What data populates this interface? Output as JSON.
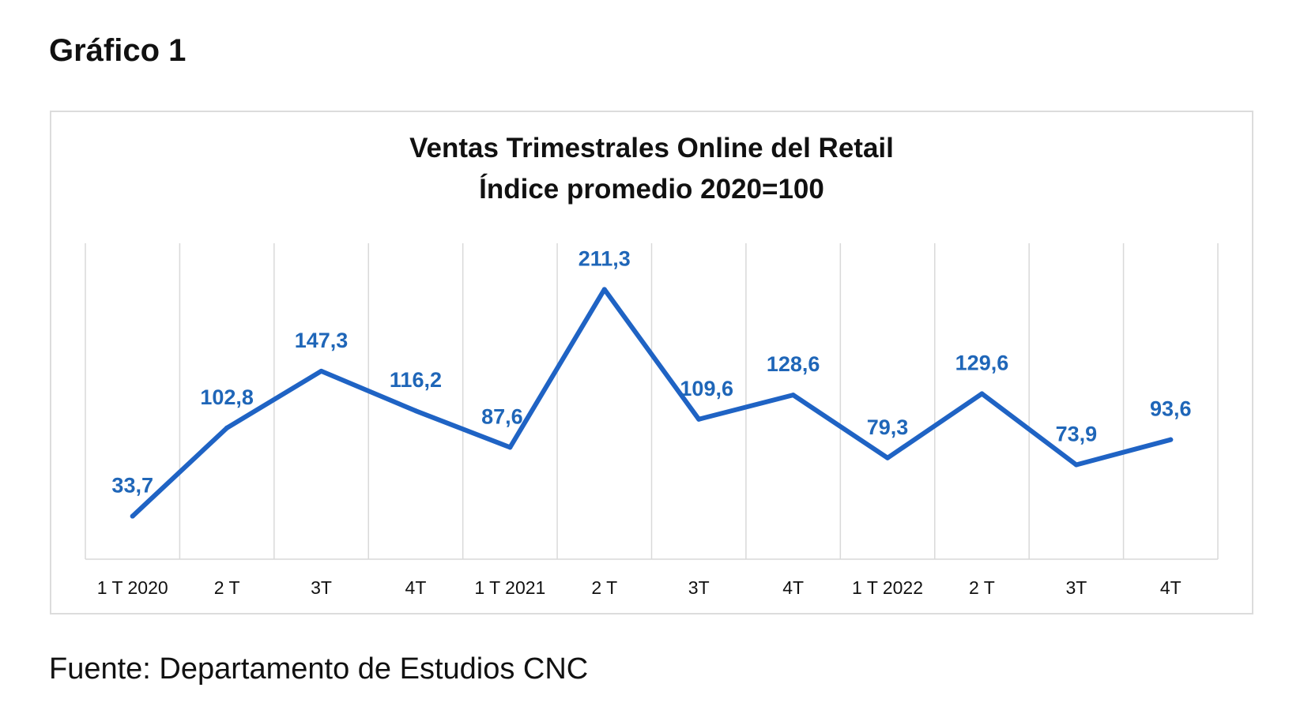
{
  "figure_label": "Gráfico 1",
  "source": "Fuente: Departamento de Estudios CNC",
  "colors": {
    "series": "#1f63c4",
    "label": "#1f66b8",
    "grid": "#d9d9d9",
    "axis_text": "#111111"
  },
  "chart_data": {
    "type": "line",
    "title_lines": [
      "Ventas Trimestrales Online del Retail",
      "Índice promedio 2020=100"
    ],
    "categories": [
      "1 T 2020",
      "2 T",
      "3T",
      "4T",
      "1 T 2021",
      "2 T",
      "3T",
      "4T",
      "1 T 2022",
      "2 T",
      "3T",
      "4T"
    ],
    "series": [
      {
        "values": [
          33.7,
          102.8,
          147.3,
          116.2,
          87.6,
          211.3,
          109.6,
          128.6,
          79.3,
          129.6,
          73.9,
          93.6
        ],
        "labels": [
          "33,7",
          "102,8",
          "147,3",
          "116,2",
          "87,6",
          "211,3",
          "109,6",
          "128,6",
          "79,3",
          "129,6",
          "73,9",
          "93,6"
        ]
      }
    ],
    "xlabel": "",
    "ylabel": "",
    "ylim": [
      0,
      240
    ],
    "grid": "vertical",
    "legend": "none"
  }
}
